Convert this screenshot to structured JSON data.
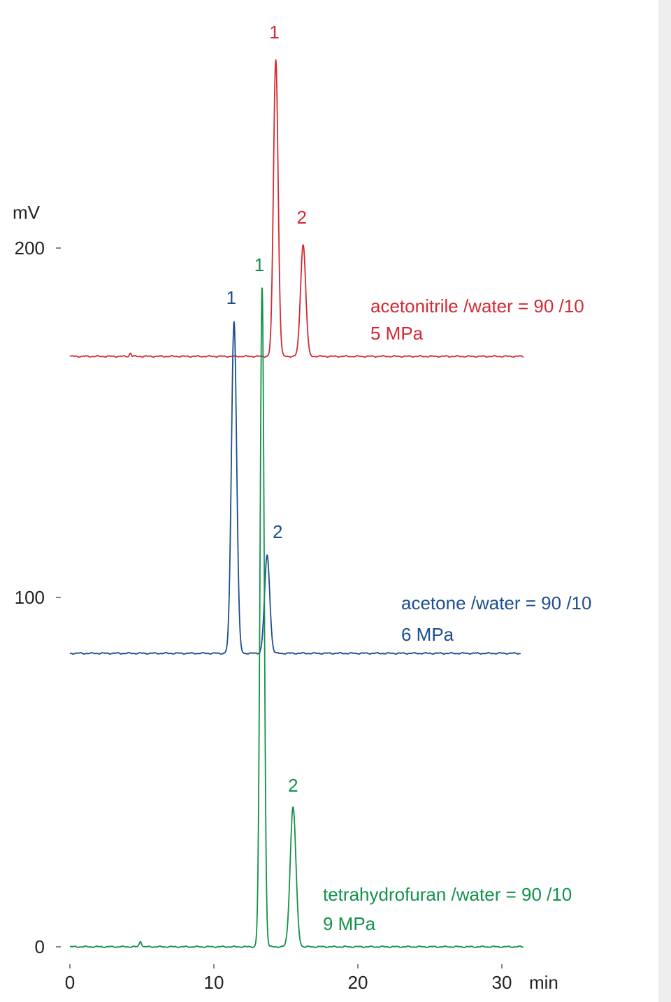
{
  "chart_data": {
    "type": "line",
    "title": "",
    "xlabel": "min",
    "ylabel": "mV",
    "xlim": [
      0,
      33
    ],
    "ylim": [
      0,
      200
    ],
    "x_ticks": [
      0,
      10,
      20,
      30
    ],
    "y_ticks": [
      0,
      100,
      200
    ],
    "series": [
      {
        "name": "acetonitrile /water = 90 /10",
        "condition": "5 MPa",
        "color": "#d42a33",
        "baseline": 169,
        "noise_amp": 0.25,
        "trace_end": 31.5,
        "peaks": [
          {
            "label": "1",
            "x": 14.3,
            "y": 254,
            "sigma": 0.16
          },
          {
            "label": "2",
            "x": 16.2,
            "y": 201,
            "sigma": 0.18
          }
        ],
        "bumps": [
          {
            "x": 4.2,
            "y": 170,
            "sigma": 0.06
          }
        ]
      },
      {
        "name": "acetone /water = 90 /10",
        "condition": "6 MPa",
        "color": "#1d4e8f",
        "baseline": 84,
        "noise_amp": 0.25,
        "trace_end": 31.3,
        "peaks": [
          {
            "label": "1",
            "x": 11.4,
            "y": 179,
            "sigma": 0.18
          },
          {
            "label": "2",
            "x": 13.7,
            "y": 112,
            "sigma": 0.18
          }
        ],
        "bumps": []
      },
      {
        "name": "tetrahydrofuran /water = 90 /10",
        "condition": "9 MPa",
        "color": "#12924a",
        "baseline": 0,
        "noise_amp": 0.25,
        "trace_end": 31.5,
        "peaks": [
          {
            "label": "1",
            "x": 13.35,
            "y": 189,
            "sigma": 0.14
          },
          {
            "label": "2",
            "x": 15.5,
            "y": 40,
            "sigma": 0.2
          }
        ],
        "bumps": [
          {
            "x": 4.9,
            "y": 1.6,
            "sigma": 0.08
          }
        ]
      }
    ]
  }
}
